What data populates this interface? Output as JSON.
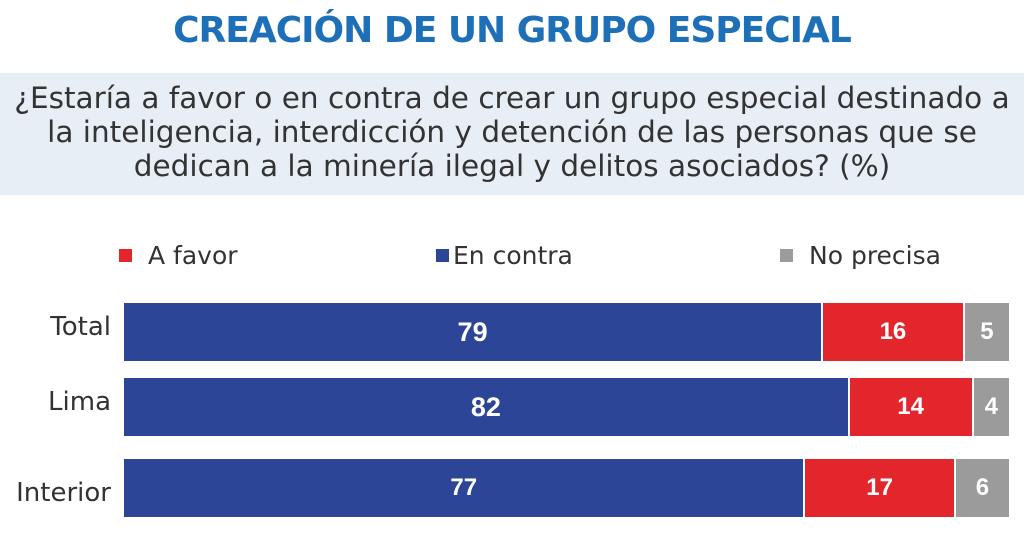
{
  "title": "CREACIÓN DE UN GRUPO ESPECIAL",
  "question": {
    "lines": [
      "¿Estaría a favor o en contra de crear un grupo especial destinado a",
      "la inteligencia, interdicción y detención de las personas que se",
      "dedican a la minería ilegal y delitos asociados?  (%)"
    ]
  },
  "colors": {
    "title": "#1d6fb8",
    "question_band": "#e7eef5",
    "a_favor": "#e3262b",
    "en_contra": "#2d4596",
    "no_precisa": "#9b9b9b"
  },
  "chart_data": {
    "type": "bar",
    "orientation": "horizontal",
    "stacked": true,
    "categories": [
      "Total",
      "Lima",
      "Interior"
    ],
    "series": [
      {
        "name": "En contra",
        "values": [
          79,
          82,
          77
        ]
      },
      {
        "name": "A favor",
        "values": [
          16,
          14,
          17
        ]
      },
      {
        "name": "No precisa",
        "values": [
          5,
          4,
          6
        ]
      }
    ],
    "legend": {
      "placement": "top",
      "entries": [
        "A favor",
        "En contra",
        "No precisa"
      ]
    },
    "unit": "%",
    "xlim": [
      0,
      100
    ],
    "grid": false
  }
}
